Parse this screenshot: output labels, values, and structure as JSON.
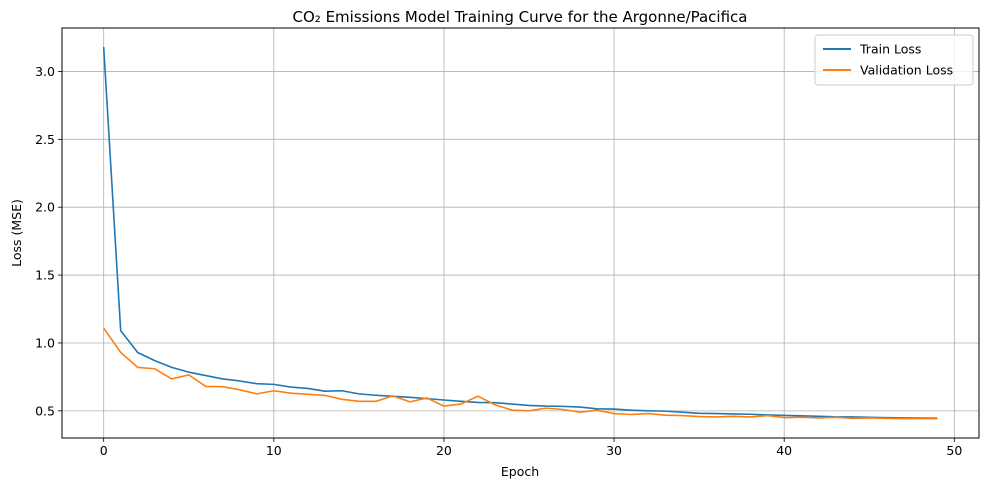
{
  "chart_data": {
    "type": "line",
    "title": "CO₂ Emissions Model Training Curve for the Argonne/Pacifica",
    "xlabel": "Epoch",
    "ylabel": "Loss (MSE)",
    "xlim": [
      -2.45,
      51.45
    ],
    "ylim": [
      0.3,
      3.32
    ],
    "xticks": [
      0,
      10,
      20,
      30,
      40,
      50
    ],
    "yticks": [
      0.5,
      1.0,
      1.5,
      2.0,
      2.5,
      3.0
    ],
    "ytick_labels": [
      "0.5",
      "1.0",
      "1.5",
      "2.0",
      "2.5",
      "3.0"
    ],
    "grid": true,
    "legend_position": "top-right",
    "x": [
      0,
      1,
      2,
      3,
      4,
      5,
      6,
      7,
      8,
      9,
      10,
      11,
      12,
      13,
      14,
      15,
      16,
      17,
      18,
      19,
      20,
      21,
      22,
      23,
      24,
      25,
      26,
      27,
      28,
      29,
      30,
      31,
      32,
      33,
      34,
      35,
      36,
      37,
      38,
      39,
      40,
      41,
      42,
      43,
      44,
      45,
      46,
      47,
      48,
      49
    ],
    "series": [
      {
        "name": "Train Loss",
        "color": "#1f77b4",
        "values": [
          3.18,
          1.09,
          0.93,
          0.87,
          0.82,
          0.785,
          0.76,
          0.735,
          0.72,
          0.7,
          0.695,
          0.675,
          0.665,
          0.645,
          0.648,
          0.625,
          0.615,
          0.607,
          0.6,
          0.59,
          0.58,
          0.57,
          0.562,
          0.56,
          0.55,
          0.54,
          0.535,
          0.533,
          0.528,
          0.515,
          0.513,
          0.505,
          0.5,
          0.498,
          0.49,
          0.482,
          0.48,
          0.477,
          0.475,
          0.47,
          0.466,
          0.464,
          0.46,
          0.456,
          0.455,
          0.452,
          0.45,
          0.448,
          0.447,
          0.446
        ]
      },
      {
        "name": "Validation Loss",
        "color": "#ff7f0e",
        "values": [
          1.11,
          0.93,
          0.82,
          0.81,
          0.735,
          0.765,
          0.68,
          0.678,
          0.655,
          0.625,
          0.648,
          0.63,
          0.622,
          0.614,
          0.585,
          0.57,
          0.57,
          0.61,
          0.566,
          0.595,
          0.535,
          0.55,
          0.608,
          0.545,
          0.505,
          0.5,
          0.52,
          0.51,
          0.49,
          0.505,
          0.48,
          0.473,
          0.48,
          0.468,
          0.465,
          0.458,
          0.455,
          0.46,
          0.455,
          0.465,
          0.45,
          0.453,
          0.448,
          0.452,
          0.445,
          0.448,
          0.445,
          0.442,
          0.443,
          0.442
        ]
      }
    ]
  }
}
